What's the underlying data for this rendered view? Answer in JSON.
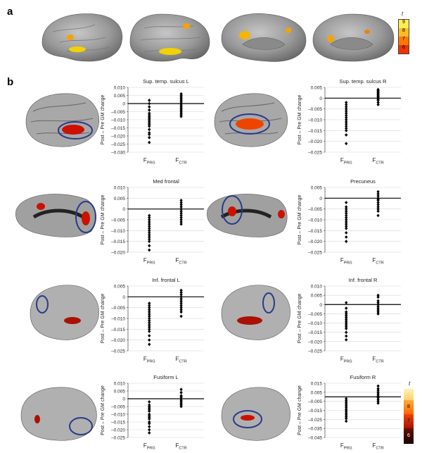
{
  "panel_a_label": "a",
  "panel_b_label": "b",
  "colorbar_top": {
    "symbol": "t",
    "ticks": [
      "9",
      "8",
      "7",
      "6"
    ]
  },
  "colorbar_bottom": {
    "symbol": "t",
    "ticks": [
      "8",
      "7",
      "6"
    ]
  },
  "chart_data": [
    {
      "type": "scatter",
      "title": "Sup. temp. sulcus L",
      "ylabel": "Post – Pre GM change",
      "ylim": [
        -0.03,
        0.01
      ],
      "yticks": [
        "0.010",
        "0.005",
        "0",
        "–0.005",
        "–0.010",
        "–0.015",
        "–0.020",
        "–0.025",
        "–0.030"
      ],
      "ytick_values": [
        0.01,
        0.005,
        0,
        -0.005,
        -0.01,
        -0.015,
        -0.02,
        -0.025,
        -0.03
      ],
      "categories": [
        "F_PRG",
        "F_CTR"
      ],
      "series": [
        {
          "values": [
            0.002,
            0.0,
            -0.002,
            -0.004,
            -0.006,
            -0.007,
            -0.008,
            -0.009,
            -0.01,
            -0.011,
            -0.012,
            -0.013,
            -0.014,
            -0.016,
            -0.018,
            -0.019,
            -0.021,
            -0.024
          ]
        },
        {
          "values": [
            0.006,
            0.005,
            0.004,
            0.003,
            0.002,
            0.001,
            0.0,
            -0.001,
            -0.002,
            -0.003,
            -0.004,
            -0.005,
            -0.006,
            -0.007,
            -0.008
          ]
        }
      ]
    },
    {
      "type": "scatter",
      "title": "Sup. temp. sulcus R",
      "ylabel": "Post – Pre GM change",
      "ylim": [
        -0.025,
        0.005
      ],
      "yticks": [
        "0.005",
        "0",
        "–0.005",
        "–0.010",
        "–0.015",
        "–0.020",
        "–0.025"
      ],
      "ytick_values": [
        0.005,
        0,
        -0.005,
        -0.01,
        -0.015,
        -0.02,
        -0.025
      ],
      "categories": [
        "F_PRG",
        "F_CTR"
      ],
      "series": [
        {
          "values": [
            -0.002,
            -0.003,
            -0.004,
            -0.005,
            -0.006,
            -0.007,
            -0.008,
            -0.009,
            -0.01,
            -0.011,
            -0.012,
            -0.013,
            -0.014,
            -0.015,
            -0.017,
            -0.021
          ]
        },
        {
          "values": [
            0.004,
            0.0035,
            0.003,
            0.0025,
            0.002,
            0.0015,
            0.001,
            0.0005,
            0.0,
            -0.0005,
            -0.001,
            -0.002,
            -0.003
          ]
        }
      ]
    },
    {
      "type": "scatter",
      "title": "Med frontal",
      "ylabel": "Post – Pre GM change",
      "ylim": [
        -0.02,
        0.01
      ],
      "yticks": [
        "0.010",
        "0.005",
        "0",
        "–0.005",
        "–0.010",
        "–0.015",
        "–0.020"
      ],
      "ytick_values": [
        0.01,
        0.005,
        0,
        -0.005,
        -0.01,
        -0.015,
        -0.02
      ],
      "categories": [
        "F_PRG",
        "F_CTR"
      ],
      "series": [
        {
          "values": [
            -0.003,
            -0.004,
            -0.005,
            -0.006,
            -0.007,
            -0.008,
            -0.009,
            -0.01,
            -0.011,
            -0.012,
            -0.013,
            -0.014,
            -0.015,
            -0.017,
            -0.019
          ]
        },
        {
          "values": [
            0.004,
            0.003,
            0.002,
            0.001,
            0.0,
            -0.001,
            -0.002,
            -0.003,
            -0.004,
            -0.005,
            -0.006,
            -0.007
          ]
        }
      ]
    },
    {
      "type": "scatter",
      "title": "Precuneus",
      "ylabel": "Post – Pre GM change",
      "ylim": [
        -0.025,
        0.005
      ],
      "yticks": [
        "0.005",
        "0",
        "–0.005",
        "–0.010",
        "–0.015",
        "–0.020",
        "–0.025"
      ],
      "ytick_values": [
        0.005,
        0,
        -0.005,
        -0.01,
        -0.015,
        -0.02,
        -0.025
      ],
      "categories": [
        "F_PRG",
        "F_CTR"
      ],
      "series": [
        {
          "values": [
            -0.002,
            -0.004,
            -0.005,
            -0.006,
            -0.007,
            -0.008,
            -0.009,
            -0.01,
            -0.011,
            -0.012,
            -0.013,
            -0.014,
            -0.016,
            -0.018,
            -0.02
          ]
        },
        {
          "values": [
            0.003,
            0.002,
            0.001,
            0.0,
            -0.0005,
            -0.001,
            -0.002,
            -0.003,
            -0.004,
            -0.005,
            -0.006,
            -0.008
          ]
        }
      ]
    },
    {
      "type": "scatter",
      "title": "Inf. frontal L",
      "ylabel": "Post – Pre GM change",
      "ylim": [
        -0.025,
        0.005
      ],
      "yticks": [
        "0.005",
        "0",
        "–0.005",
        "–0.010",
        "–0.015",
        "–0.020",
        "–0.025"
      ],
      "ytick_values": [
        0.005,
        0,
        -0.005,
        -0.01,
        -0.015,
        -0.02,
        -0.025
      ],
      "categories": [
        "F_PRG",
        "F_CTR"
      ],
      "series": [
        {
          "values": [
            -0.003,
            -0.004,
            -0.005,
            -0.006,
            -0.007,
            -0.008,
            -0.009,
            -0.01,
            -0.011,
            -0.012,
            -0.013,
            -0.014,
            -0.015,
            -0.016,
            -0.018,
            -0.02,
            -0.022
          ]
        },
        {
          "values": [
            0.003,
            0.002,
            0.001,
            0.0,
            -0.001,
            -0.002,
            -0.003,
            -0.004,
            -0.005,
            -0.006,
            -0.007,
            -0.009
          ]
        }
      ]
    },
    {
      "type": "scatter",
      "title": "Inf. frontal R",
      "ylabel": "Post – Pre GM change",
      "ylim": [
        -0.025,
        0.01
      ],
      "yticks": [
        "0.010",
        "0.005",
        "0",
        "–0.005",
        "–0.010",
        "–0.015",
        "–0.020",
        "–0.025"
      ],
      "ytick_values": [
        0.01,
        0.005,
        0,
        -0.005,
        -0.01,
        -0.015,
        -0.02,
        -0.025
      ],
      "categories": [
        "F_PRG",
        "F_CTR"
      ],
      "series": [
        {
          "values": [
            0.001,
            -0.002,
            -0.004,
            -0.005,
            -0.006,
            -0.007,
            -0.008,
            -0.009,
            -0.01,
            -0.011,
            -0.012,
            -0.013,
            -0.015,
            -0.017,
            -0.019
          ]
        },
        {
          "values": [
            0.005,
            0.004,
            0.002,
            0.001,
            0.0,
            -0.001,
            -0.002,
            -0.003,
            -0.004,
            -0.005
          ]
        }
      ]
    },
    {
      "type": "scatter",
      "title": "Fusiform L",
      "ylabel": "Post – Pre GM change",
      "ylim": [
        -0.025,
        0.01
      ],
      "yticks": [
        "0.010",
        "0.005",
        "0",
        "–0.005",
        "–0.010",
        "–0.015",
        "–0.020",
        "–0.025"
      ],
      "ytick_values": [
        0.01,
        0.005,
        0,
        -0.005,
        -0.01,
        -0.015,
        -0.02,
        -0.025
      ],
      "categories": [
        "F_PRG",
        "F_CTR"
      ],
      "series": [
        {
          "values": [
            -0.002,
            -0.004,
            -0.005,
            -0.006,
            -0.007,
            -0.008,
            -0.01,
            -0.011,
            -0.012,
            -0.013,
            -0.015,
            -0.016,
            -0.018,
            -0.02,
            -0.022
          ]
        },
        {
          "values": [
            0.006,
            0.004,
            0.002,
            0.001,
            0.0,
            -0.001,
            -0.002,
            -0.003,
            -0.004,
            -0.005
          ]
        }
      ]
    },
    {
      "type": "scatter",
      "title": "Fusiform R",
      "ylabel": "Post – Pre GM change",
      "ylim": [
        -0.045,
        0.015
      ],
      "yticks": [
        "0.015",
        "0.005",
        "–0.005",
        "–0.015",
        "–0.025",
        "–0.035",
        "–0.045"
      ],
      "ytick_values": [
        0.015,
        0.005,
        -0.005,
        -0.015,
        -0.025,
        -0.035,
        -0.045
      ],
      "categories": [
        "F_PRG",
        "F_CTR"
      ],
      "series": [
        {
          "values": [
            -0.002,
            -0.004,
            -0.006,
            -0.008,
            -0.01,
            -0.012,
            -0.014,
            -0.016,
            -0.018,
            -0.02,
            -0.022,
            -0.024,
            -0.027
          ]
        },
        {
          "values": [
            0.012,
            0.009,
            0.007,
            0.005,
            0.003,
            0.001,
            -0.001,
            -0.003,
            -0.005,
            -0.007
          ]
        }
      ]
    }
  ]
}
